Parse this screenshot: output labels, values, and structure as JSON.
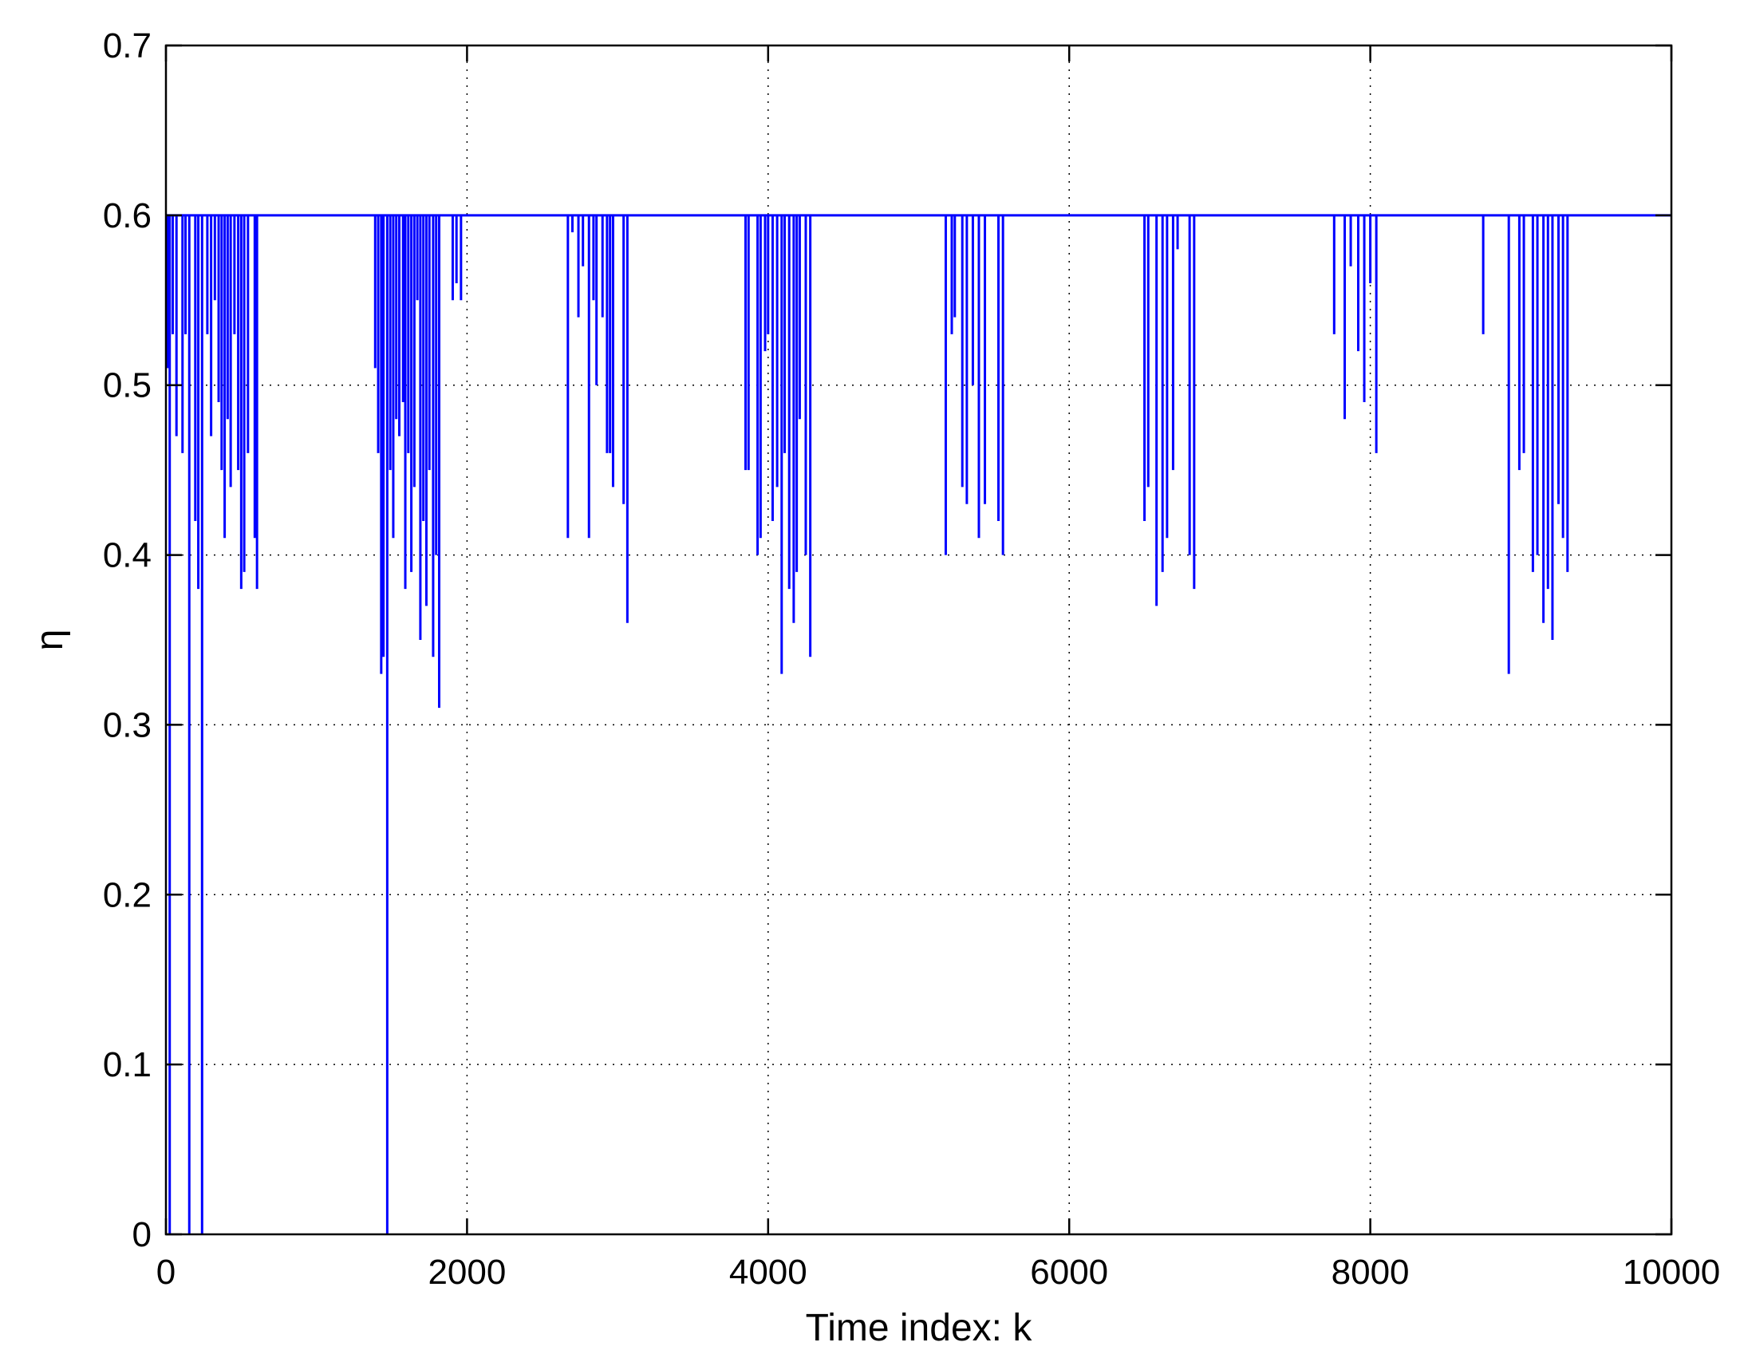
{
  "chart_data": {
    "type": "line",
    "xlabel": "Time index: k",
    "ylabel": "η",
    "xlim": [
      0,
      10000
    ],
    "ylim": [
      0,
      0.7
    ],
    "xticks": [
      0,
      2000,
      4000,
      6000,
      8000,
      10000
    ],
    "xtick_labels": [
      "0",
      "2000",
      "4000",
      "6000",
      "8000",
      "10000"
    ],
    "yticks": [
      0,
      0.1,
      0.2,
      0.3,
      0.4,
      0.5,
      0.6,
      0.7
    ],
    "ytick_labels": [
      "0",
      "0.1",
      "0.2",
      "0.3",
      "0.4",
      "0.5",
      "0.6",
      "0.7"
    ],
    "grid": true,
    "series": [
      {
        "color": "#0000ff",
        "baseline": 0.6,
        "x_end": 10000,
        "dips": [
          [
            10,
            0.51
          ],
          [
            25,
            0.0
          ],
          [
            45,
            0.53
          ],
          [
            70,
            0.47
          ],
          [
            110,
            0.46
          ],
          [
            130,
            0.53
          ],
          [
            155,
            0.0
          ],
          [
            195,
            0.42
          ],
          [
            215,
            0.38
          ],
          [
            240,
            0.0
          ],
          [
            275,
            0.53
          ],
          [
            300,
            0.47
          ],
          [
            325,
            0.55
          ],
          [
            350,
            0.49
          ],
          [
            370,
            0.45
          ],
          [
            390,
            0.41
          ],
          [
            410,
            0.48
          ],
          [
            430,
            0.44
          ],
          [
            455,
            0.53
          ],
          [
            480,
            0.45
          ],
          [
            500,
            0.38
          ],
          [
            520,
            0.39
          ],
          [
            545,
            0.46
          ],
          [
            590,
            0.41
          ],
          [
            605,
            0.38
          ],
          [
            1390,
            0.51
          ],
          [
            1410,
            0.46
          ],
          [
            1430,
            0.33
          ],
          [
            1445,
            0.34
          ],
          [
            1470,
            0.0
          ],
          [
            1490,
            0.45
          ],
          [
            1510,
            0.41
          ],
          [
            1530,
            0.48
          ],
          [
            1550,
            0.47
          ],
          [
            1575,
            0.49
          ],
          [
            1590,
            0.38
          ],
          [
            1610,
            0.46
          ],
          [
            1630,
            0.39
          ],
          [
            1650,
            0.44
          ],
          [
            1670,
            0.55
          ],
          [
            1690,
            0.35
          ],
          [
            1710,
            0.42
          ],
          [
            1730,
            0.37
          ],
          [
            1750,
            0.45
          ],
          [
            1775,
            0.34
          ],
          [
            1795,
            0.4
          ],
          [
            1815,
            0.31
          ],
          [
            1905,
            0.55
          ],
          [
            1930,
            0.56
          ],
          [
            1960,
            0.55
          ],
          [
            2670,
            0.41
          ],
          [
            2700,
            0.59
          ],
          [
            2740,
            0.54
          ],
          [
            2770,
            0.57
          ],
          [
            2810,
            0.41
          ],
          [
            2840,
            0.55
          ],
          [
            2860,
            0.5
          ],
          [
            2900,
            0.54
          ],
          [
            2930,
            0.46
          ],
          [
            2950,
            0.46
          ],
          [
            2970,
            0.44
          ],
          [
            3040,
            0.43
          ],
          [
            3065,
            0.36
          ],
          [
            3850,
            0.45
          ],
          [
            3870,
            0.45
          ],
          [
            3930,
            0.4
          ],
          [
            3950,
            0.41
          ],
          [
            3980,
            0.52
          ],
          [
            4000,
            0.53
          ],
          [
            4030,
            0.42
          ],
          [
            4060,
            0.44
          ],
          [
            4090,
            0.33
          ],
          [
            4110,
            0.46
          ],
          [
            4140,
            0.38
          ],
          [
            4170,
            0.36
          ],
          [
            4190,
            0.39
          ],
          [
            4210,
            0.48
          ],
          [
            4250,
            0.4
          ],
          [
            4280,
            0.34
          ],
          [
            5180,
            0.4
          ],
          [
            5220,
            0.53
          ],
          [
            5240,
            0.54
          ],
          [
            5290,
            0.44
          ],
          [
            5320,
            0.43
          ],
          [
            5360,
            0.5
          ],
          [
            5400,
            0.41
          ],
          [
            5440,
            0.43
          ],
          [
            5530,
            0.42
          ],
          [
            5560,
            0.4
          ],
          [
            6420,
            0.6
          ],
          [
            6500,
            0.42
          ],
          [
            6525,
            0.44
          ],
          [
            6580,
            0.37
          ],
          [
            6620,
            0.39
          ],
          [
            6650,
            0.41
          ],
          [
            6690,
            0.45
          ],
          [
            6720,
            0.58
          ],
          [
            6800,
            0.4
          ],
          [
            6830,
            0.38
          ],
          [
            7760,
            0.53
          ],
          [
            7830,
            0.48
          ],
          [
            7870,
            0.57
          ],
          [
            7920,
            0.52
          ],
          [
            7960,
            0.49
          ],
          [
            8000,
            0.56
          ],
          [
            8040,
            0.46
          ],
          [
            8750,
            0.53
          ],
          [
            8920,
            0.33
          ],
          [
            8990,
            0.45
          ],
          [
            9020,
            0.46
          ],
          [
            9080,
            0.39
          ],
          [
            9110,
            0.4
          ],
          [
            9150,
            0.36
          ],
          [
            9180,
            0.38
          ],
          [
            9210,
            0.35
          ],
          [
            9250,
            0.43
          ],
          [
            9280,
            0.41
          ],
          [
            9310,
            0.39
          ]
        ]
      }
    ]
  }
}
